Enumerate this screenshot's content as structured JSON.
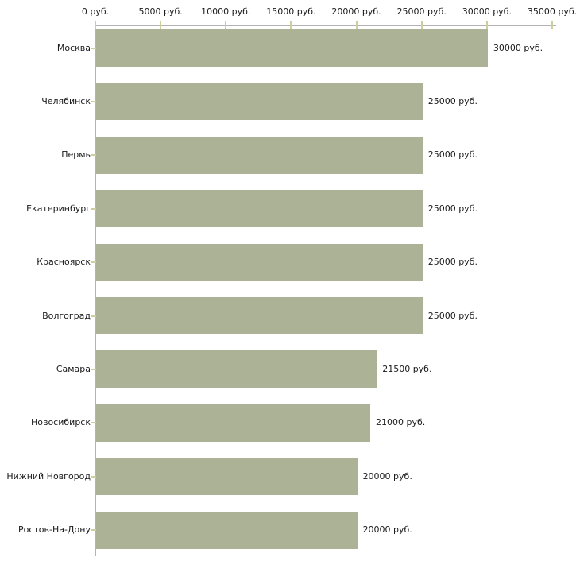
{
  "chart_data": {
    "type": "bar",
    "orientation": "horizontal",
    "title": "",
    "categories": [
      "Москва",
      "Челябинск",
      "Пермь",
      "Екатеринбург",
      "Красноярск",
      "Волгоград",
      "Самара",
      "Новосибирск",
      "Нижний Новгород",
      "Ростов-На-Дону"
    ],
    "values": [
      30000,
      25000,
      25000,
      25000,
      25000,
      25000,
      21500,
      21000,
      20000,
      20000
    ],
    "value_labels": [
      "30000 руб.",
      "25000 руб.",
      "25000 руб.",
      "25000 руб.",
      "25000 руб.",
      "25000 руб.",
      "21500 руб.",
      "21000 руб.",
      "20000 руб.",
      "20000 руб."
    ],
    "x_axis": {
      "position": "top",
      "range": [
        0,
        35000
      ],
      "tick_values": [
        0,
        5000,
        10000,
        15000,
        20000,
        25000,
        30000,
        35000
      ],
      "tick_labels": [
        "0 руб.",
        "5000 руб.",
        "10000 руб.",
        "15000 руб.",
        "20000 руб.",
        "25000 руб.",
        "30000 руб.",
        "35000 руб."
      ]
    },
    "ylabel": "",
    "xlabel": "",
    "grid": false,
    "legend": false,
    "colors": {
      "bar": "#abb295",
      "axis_line": "#b3b3b3",
      "tick": "#cdcd9d",
      "label_text": "#1a1a1a",
      "background": "#ffffff"
    }
  }
}
